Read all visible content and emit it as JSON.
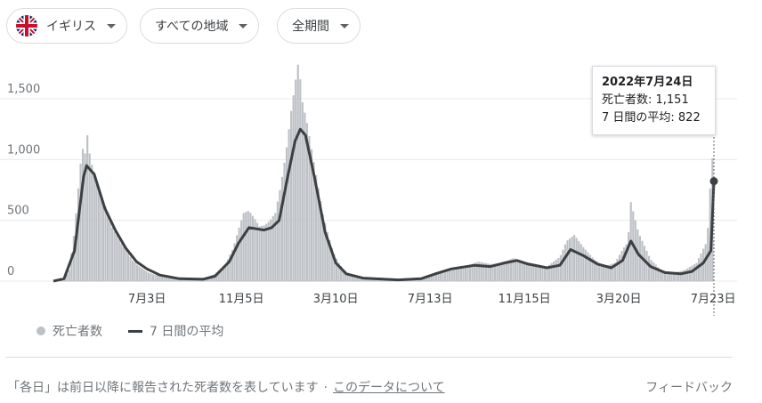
{
  "filters": {
    "country": {
      "label": "イギリス",
      "icon": "uk-flag-icon"
    },
    "region": {
      "label": "すべての地域"
    },
    "period": {
      "label": "全期間"
    }
  },
  "tooltip": {
    "date": "2022年7月24日",
    "deaths_line": "死亡者数: 1,151",
    "avg_line": "7 日間の平均: 822"
  },
  "legend": {
    "daily": "死亡者数",
    "average": "7 日間の平均"
  },
  "footer": {
    "note": "「各日」は前日以降に報告された死者数を表しています",
    "separator": "·",
    "link": "このデータについて",
    "feedback": "フィードバック"
  },
  "colors": {
    "bars": "#bdc1c6",
    "line": "#3c4043",
    "grid": "#e8eaed"
  },
  "chart_data": {
    "type": "bar",
    "overlay_type": "line",
    "title": "",
    "xlabel": "",
    "ylabel": "",
    "ylim": [
      0,
      1800
    ],
    "yticks": [
      {
        "value": 0,
        "label": "0"
      },
      {
        "value": 500,
        "label": "500"
      },
      {
        "value": 1000,
        "label": "1,000"
      },
      {
        "value": 1500,
        "label": "1,500"
      }
    ],
    "x_range": [
      "2020-03-01",
      "2022-07-24"
    ],
    "xticks": [
      {
        "date": "2020-07-03",
        "label": "7月3日"
      },
      {
        "date": "2020-11-05",
        "label": "11月5日"
      },
      {
        "date": "2021-03-10",
        "label": "3月10日"
      },
      {
        "date": "2021-07-13",
        "label": "7月13日"
      },
      {
        "date": "2021-11-15",
        "label": "11月15日"
      },
      {
        "date": "2022-03-20",
        "label": "3月20日"
      },
      {
        "date": "2022-07-23",
        "label": "7月23日"
      }
    ],
    "series": [
      {
        "name": "死亡者数",
        "kind": "daily_bars",
        "points": [
          [
            "2020-03-01",
            0
          ],
          [
            "2020-03-08",
            2
          ],
          [
            "2020-03-15",
            20
          ],
          [
            "2020-03-22",
            90
          ],
          [
            "2020-03-29",
            420
          ],
          [
            "2020-04-05",
            900
          ],
          [
            "2020-04-08",
            1100
          ],
          [
            "2020-04-12",
            1050
          ],
          [
            "2020-04-15",
            1200
          ],
          [
            "2020-04-19",
            1000
          ],
          [
            "2020-04-26",
            850
          ],
          [
            "2020-05-03",
            700
          ],
          [
            "2020-05-10",
            600
          ],
          [
            "2020-05-17",
            450
          ],
          [
            "2020-05-24",
            380
          ],
          [
            "2020-05-31",
            300
          ],
          [
            "2020-06-07",
            240
          ],
          [
            "2020-06-14",
            170
          ],
          [
            "2020-06-21",
            130
          ],
          [
            "2020-06-28",
            100
          ],
          [
            "2020-07-05",
            70
          ],
          [
            "2020-07-12",
            55
          ],
          [
            "2020-07-19",
            45
          ],
          [
            "2020-08-01",
            30
          ],
          [
            "2020-08-15",
            20
          ],
          [
            "2020-09-01",
            15
          ],
          [
            "2020-09-15",
            20
          ],
          [
            "2020-10-01",
            60
          ],
          [
            "2020-10-15",
            140
          ],
          [
            "2020-10-25",
            270
          ],
          [
            "2020-11-01",
            420
          ],
          [
            "2020-11-08",
            560
          ],
          [
            "2020-11-15",
            580
          ],
          [
            "2020-11-22",
            520
          ],
          [
            "2020-11-29",
            450
          ],
          [
            "2020-12-06",
            460
          ],
          [
            "2020-12-13",
            500
          ],
          [
            "2020-12-20",
            560
          ],
          [
            "2020-12-27",
            780
          ],
          [
            "2021-01-03",
            1050
          ],
          [
            "2021-01-10",
            1400
          ],
          [
            "2021-01-17",
            1700
          ],
          [
            "2021-01-20",
            1820
          ],
          [
            "2021-01-24",
            1500
          ],
          [
            "2021-01-31",
            1300
          ],
          [
            "2021-02-07",
            1050
          ],
          [
            "2021-02-14",
            800
          ],
          [
            "2021-02-21",
            550
          ],
          [
            "2021-02-28",
            380
          ],
          [
            "2021-03-07",
            230
          ],
          [
            "2021-03-14",
            150
          ],
          [
            "2021-03-21",
            90
          ],
          [
            "2021-03-28",
            60
          ],
          [
            "2021-04-11",
            30
          ],
          [
            "2021-05-01",
            15
          ],
          [
            "2021-06-01",
            12
          ],
          [
            "2021-06-20",
            20
          ],
          [
            "2021-07-04",
            30
          ],
          [
            "2021-07-18",
            60
          ],
          [
            "2021-08-01",
            90
          ],
          [
            "2021-08-15",
            110
          ],
          [
            "2021-09-01",
            130
          ],
          [
            "2021-09-15",
            160
          ],
          [
            "2021-10-01",
            140
          ],
          [
            "2021-10-15",
            150
          ],
          [
            "2021-11-01",
            190
          ],
          [
            "2021-11-15",
            160
          ],
          [
            "2021-12-01",
            140
          ],
          [
            "2021-12-15",
            120
          ],
          [
            "2022-01-01",
            200
          ],
          [
            "2022-01-10",
            330
          ],
          [
            "2022-01-20",
            380
          ],
          [
            "2022-02-01",
            280
          ],
          [
            "2022-02-15",
            180
          ],
          [
            "2022-03-01",
            120
          ],
          [
            "2022-03-15",
            150
          ],
          [
            "2022-03-25",
            260
          ],
          [
            "2022-04-01",
            320
          ],
          [
            "2022-04-05",
            650
          ],
          [
            "2022-04-15",
            400
          ],
          [
            "2022-05-01",
            180
          ],
          [
            "2022-05-15",
            90
          ],
          [
            "2022-06-01",
            70
          ],
          [
            "2022-06-15",
            90
          ],
          [
            "2022-07-01",
            150
          ],
          [
            "2022-07-15",
            330
          ],
          [
            "2022-07-20",
            870
          ],
          [
            "2022-07-24",
            1151
          ]
        ]
      },
      {
        "name": "7 日間の平均",
        "kind": "line",
        "points": [
          [
            "2020-03-01",
            0
          ],
          [
            "2020-03-15",
            20
          ],
          [
            "2020-03-29",
            250
          ],
          [
            "2020-04-10",
            860
          ],
          [
            "2020-04-14",
            950
          ],
          [
            "2020-04-24",
            880
          ],
          [
            "2020-05-08",
            600
          ],
          [
            "2020-05-22",
            420
          ],
          [
            "2020-06-05",
            270
          ],
          [
            "2020-06-19",
            160
          ],
          [
            "2020-07-03",
            100
          ],
          [
            "2020-07-20",
            50
          ],
          [
            "2020-08-15",
            20
          ],
          [
            "2020-09-15",
            15
          ],
          [
            "2020-10-01",
            40
          ],
          [
            "2020-10-20",
            160
          ],
          [
            "2020-11-01",
            310
          ],
          [
            "2020-11-15",
            440
          ],
          [
            "2020-11-25",
            430
          ],
          [
            "2020-12-05",
            420
          ],
          [
            "2020-12-15",
            440
          ],
          [
            "2020-12-25",
            500
          ],
          [
            "2021-01-05",
            850
          ],
          [
            "2021-01-15",
            1150
          ],
          [
            "2021-01-22",
            1250
          ],
          [
            "2021-01-29",
            1200
          ],
          [
            "2021-02-10",
            850
          ],
          [
            "2021-02-24",
            400
          ],
          [
            "2021-03-10",
            150
          ],
          [
            "2021-03-24",
            60
          ],
          [
            "2021-04-15",
            25
          ],
          [
            "2021-06-01",
            10
          ],
          [
            "2021-07-01",
            20
          ],
          [
            "2021-07-20",
            60
          ],
          [
            "2021-08-10",
            100
          ],
          [
            "2021-09-10",
            130
          ],
          [
            "2021-10-01",
            120
          ],
          [
            "2021-10-20",
            150
          ],
          [
            "2021-11-05",
            170
          ],
          [
            "2021-11-20",
            140
          ],
          [
            "2021-12-15",
            110
          ],
          [
            "2022-01-01",
            130
          ],
          [
            "2022-01-15",
            260
          ],
          [
            "2022-02-01",
            210
          ],
          [
            "2022-02-20",
            140
          ],
          [
            "2022-03-10",
            110
          ],
          [
            "2022-03-25",
            170
          ],
          [
            "2022-04-05",
            330
          ],
          [
            "2022-04-15",
            220
          ],
          [
            "2022-05-01",
            120
          ],
          [
            "2022-05-20",
            70
          ],
          [
            "2022-06-10",
            60
          ],
          [
            "2022-06-25",
            80
          ],
          [
            "2022-07-10",
            150
          ],
          [
            "2022-07-20",
            250
          ],
          [
            "2022-07-24",
            822
          ]
        ]
      }
    ],
    "highlight": {
      "date": "2022-07-24",
      "value": 822
    }
  }
}
